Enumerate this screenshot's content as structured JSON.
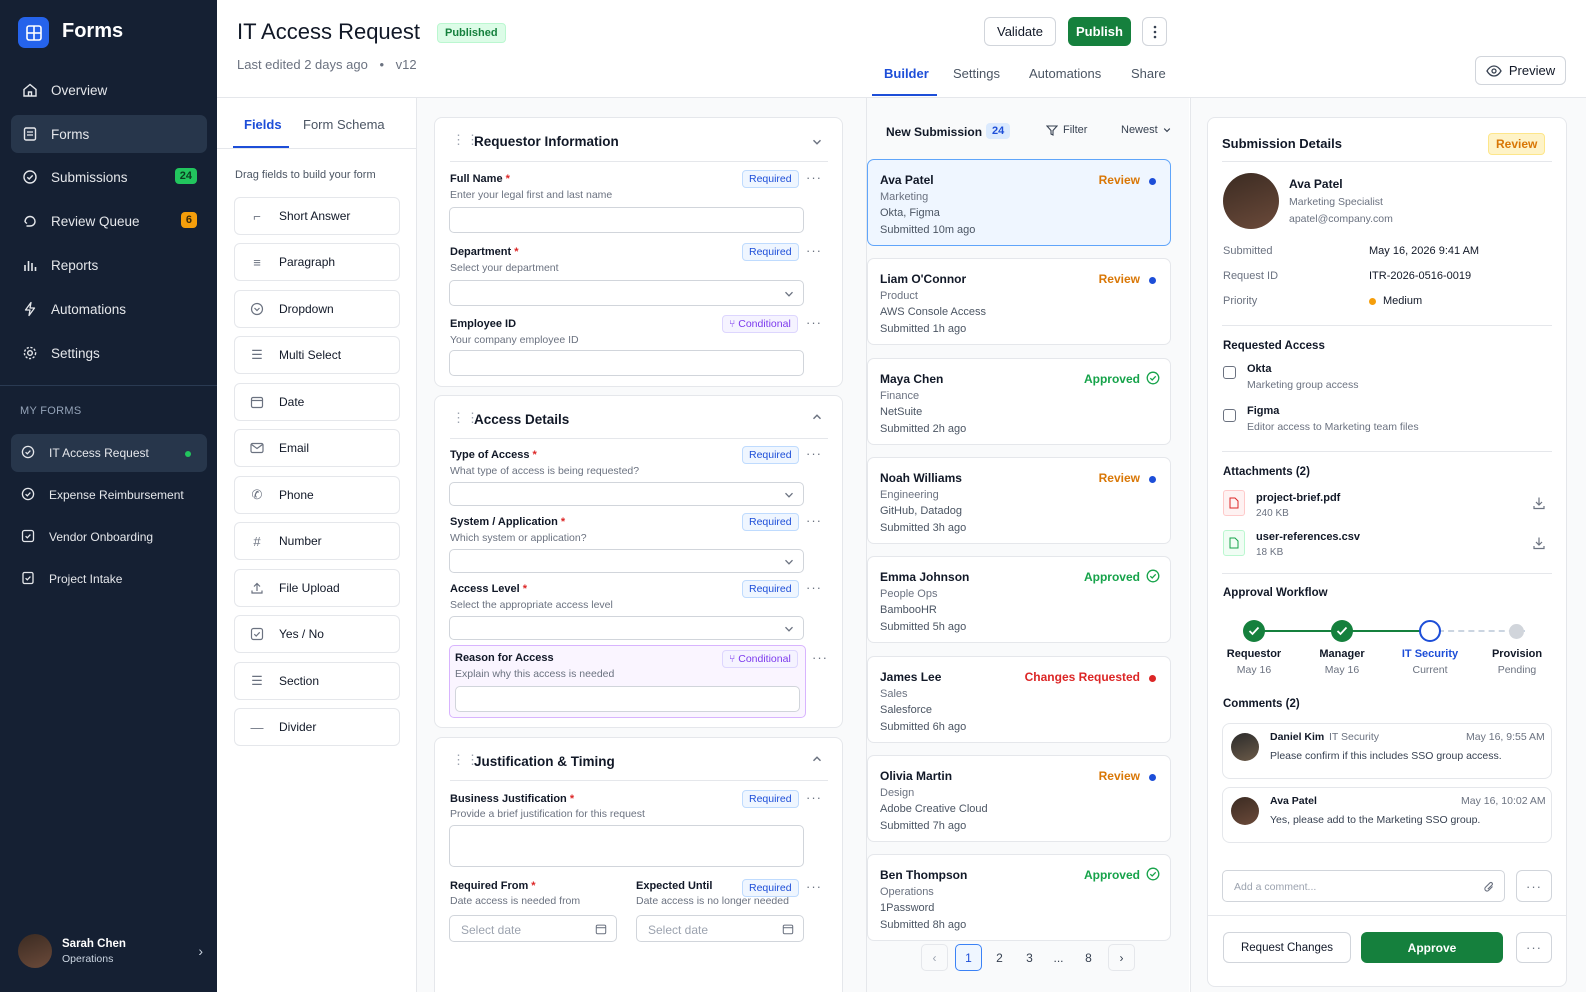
{
  "app": {
    "name": "Forms"
  },
  "sidebar": {
    "items": [
      {
        "label": "Overview",
        "icon": "home-icon"
      },
      {
        "label": "Forms",
        "icon": "form-icon"
      },
      {
        "label": "Submissions",
        "icon": "check-circle-icon",
        "badge": "24"
      },
      {
        "label": "Review Queue",
        "icon": "hand-icon",
        "badge": "6"
      },
      {
        "label": "Reports",
        "icon": "bar-chart-icon"
      },
      {
        "label": "Automations",
        "icon": "bolt-icon"
      },
      {
        "label": "Settings",
        "icon": "gear-icon"
      }
    ],
    "section_label": "MY FORMS",
    "my_forms": [
      "IT Access Request",
      "Expense Reimbursement",
      "Vendor Onboarding",
      "Project Intake"
    ],
    "user": {
      "name": "Sarah Chen",
      "role": "Operations"
    }
  },
  "header": {
    "title": "IT Access Request",
    "status": "Published",
    "edited": "Last edited 2 days ago",
    "separator": "•",
    "version": "v12",
    "validate_label": "Validate",
    "publish_label": "Publish",
    "preview_label": "Preview",
    "tabs": [
      "Builder",
      "Settings",
      "Automations",
      "Share"
    ],
    "active_tab": "Builder"
  },
  "fields_panel": {
    "tabs": [
      "Fields",
      "Form Schema"
    ],
    "hint": "Drag fields to build your form",
    "items": [
      "Short Answer",
      "Paragraph",
      "Dropdown",
      "Multi Select",
      "Date",
      "Email",
      "Phone",
      "Number",
      "File Upload",
      "Yes / No",
      "Section",
      "Divider"
    ]
  },
  "builder": {
    "required_tag": "Required",
    "conditional_tag": "Conditional",
    "sections": [
      {
        "title": "Requestor Information",
        "fields": [
          {
            "label": "Full Name",
            "help": "Enter your legal first and last name"
          },
          {
            "label": "Department",
            "help": "Select your department"
          },
          {
            "label": "Employee ID",
            "help": "Your company employee ID"
          }
        ]
      },
      {
        "title": "Access Details",
        "fields": [
          {
            "label": "Type of Access",
            "help": "What type of access is being requested?"
          },
          {
            "label": "System / Application",
            "help": "Which system or application?"
          },
          {
            "label": "Access Level",
            "help": "Select the appropriate access level"
          },
          {
            "label": "Reason for Access",
            "help": "Explain why this access is needed"
          }
        ]
      },
      {
        "title": "Justification & Timing",
        "fields": [
          {
            "label": "Business Justification",
            "help": "Provide a brief justification for this request"
          },
          {
            "label": "Required From",
            "help": "Date access is needed from",
            "placeholder": "Select date"
          },
          {
            "label": "Expected Until",
            "help": "Date access is no longer needed",
            "placeholder": "Select date"
          }
        ]
      }
    ]
  },
  "submissions": {
    "title": "New Submission",
    "count": "24",
    "filter_label": "Filter",
    "sort_label": "Newest",
    "items": [
      {
        "name": "Ava Patel",
        "dept": "Marketing",
        "apps": "Okta, Figma",
        "time": "Submitted 10m ago",
        "status": "Review"
      },
      {
        "name": "Liam O'Connor",
        "dept": "Product",
        "apps": "AWS Console Access",
        "time": "Submitted 1h ago",
        "status": "Review"
      },
      {
        "name": "Maya Chen",
        "dept": "Finance",
        "apps": "NetSuite",
        "time": "Submitted 2h ago",
        "status": "Approved"
      },
      {
        "name": "Noah Williams",
        "dept": "Engineering",
        "apps": "GitHub, Datadog",
        "time": "Submitted 3h ago",
        "status": "Review"
      },
      {
        "name": "Emma Johnson",
        "dept": "People Ops",
        "apps": "BambooHR",
        "time": "Submitted 5h ago",
        "status": "Approved"
      },
      {
        "name": "James Lee",
        "dept": "Sales",
        "apps": "Salesforce",
        "time": "Submitted 6h ago",
        "status": "Changes Requested"
      },
      {
        "name": "Olivia Martin",
        "dept": "Design",
        "apps": "Adobe Creative Cloud",
        "time": "Submitted 7h ago",
        "status": "Review"
      },
      {
        "name": "Ben Thompson",
        "dept": "Operations",
        "apps": "1Password",
        "time": "Submitted 8h ago",
        "status": "Approved"
      }
    ],
    "pagination": [
      "1",
      "2",
      "3",
      "...",
      "8"
    ]
  },
  "details": {
    "title": "Submission Details",
    "status": "Review",
    "person": {
      "name": "Ava Patel",
      "role": "Marketing Specialist",
      "email": "apatel@company.com"
    },
    "meta": [
      {
        "label": "Submitted",
        "value": "May 16, 2026 9:41 AM"
      },
      {
        "label": "Request ID",
        "value": "ITR-2026-0516-0019"
      },
      {
        "label": "Priority",
        "value": "Medium"
      }
    ],
    "requested_title": "Requested Access",
    "requested": [
      {
        "name": "Okta",
        "desc": "Marketing group access"
      },
      {
        "name": "Figma",
        "desc": "Editor access to Marketing team files"
      }
    ],
    "attachments_title": "Attachments (2)",
    "attachments": [
      {
        "name": "project-brief.pdf",
        "size": "240 KB"
      },
      {
        "name": "user-references.csv",
        "size": "18 KB"
      }
    ],
    "workflow_title": "Approval Workflow",
    "workflow": [
      {
        "name": "Requestor",
        "sub": "May 16"
      },
      {
        "name": "Manager",
        "sub": "May 16"
      },
      {
        "name": "IT Security",
        "sub": "Current"
      },
      {
        "name": "Provision",
        "sub": "Pending"
      }
    ],
    "comments_title": "Comments (2)",
    "comments": [
      {
        "author": "Daniel Kim",
        "team": "IT Security",
        "time": "May 16, 9:55 AM",
        "text": "Please confirm if this includes SSO group access."
      },
      {
        "author": "Ava Patel",
        "team": "",
        "time": "May 16, 10:02 AM",
        "text": "Yes, please add to the Marketing SSO group."
      }
    ],
    "comment_placeholder": "Add a comment...",
    "request_changes_label": "Request Changes",
    "approve_label": "Approve"
  },
  "colors": {
    "sidebar": "#152033",
    "accent": "#1d4ed8",
    "primary_green": "#15803d",
    "review": "#d97706",
    "changes": "#dc2626"
  }
}
